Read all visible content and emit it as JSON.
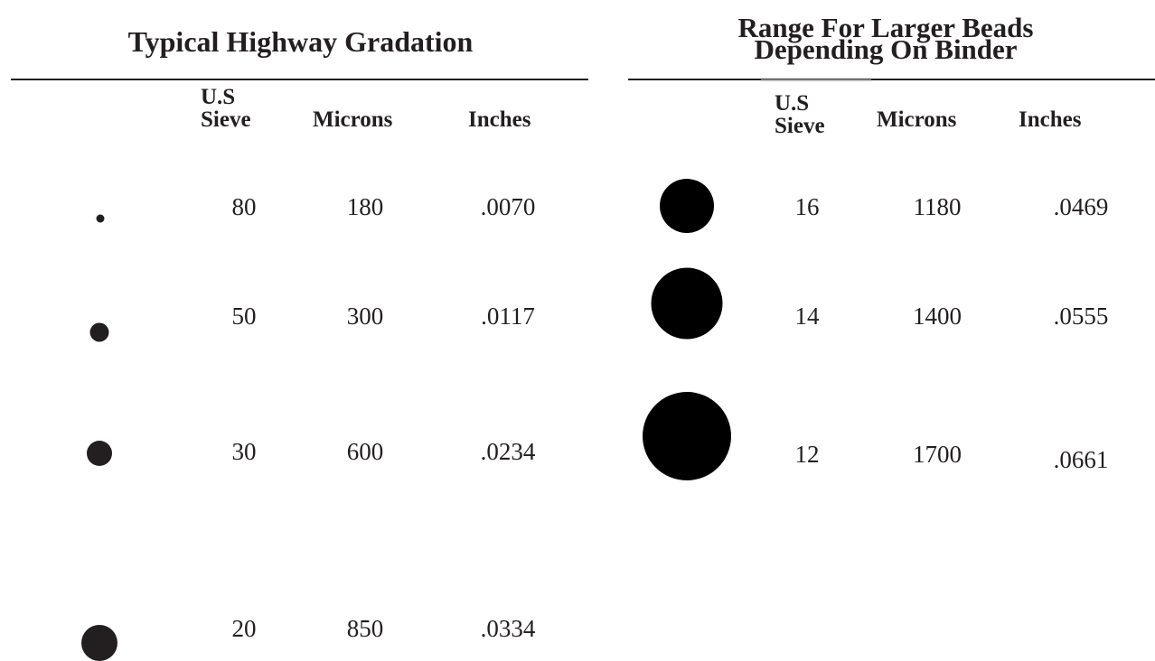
{
  "left_table": {
    "title": "Typical Highway Gradation",
    "headers": {
      "sieve_line1": "U.S",
      "sieve_line2": "Sieve",
      "microns": "Microns",
      "inches": "Inches"
    },
    "rows": [
      {
        "sieve": "80",
        "microns": "180",
        "inches": ".0070"
      },
      {
        "sieve": "50",
        "microns": "300",
        "inches": ".0117"
      },
      {
        "sieve": "30",
        "microns": "600",
        "inches": ".0234"
      },
      {
        "sieve": "20",
        "microns": "850",
        "inches": ".0334"
      }
    ]
  },
  "right_table": {
    "title_line1": "Range For Larger Beads",
    "title_line2": "Depending On Binder",
    "headers": {
      "sieve_line1": "U.S",
      "sieve_line2": "Sieve",
      "microns": "Microns",
      "inches": "Inches"
    },
    "rows": [
      {
        "sieve": "16",
        "microns": "1180",
        "inches": ".0469"
      },
      {
        "sieve": "14",
        "microns": "1400",
        "inches": ".0555"
      },
      {
        "sieve": "12",
        "microns": "1700",
        "inches": ".0661"
      }
    ]
  },
  "colors": {
    "ink": "#231f20",
    "bead_large": "#000000",
    "background": "#ffffff"
  }
}
